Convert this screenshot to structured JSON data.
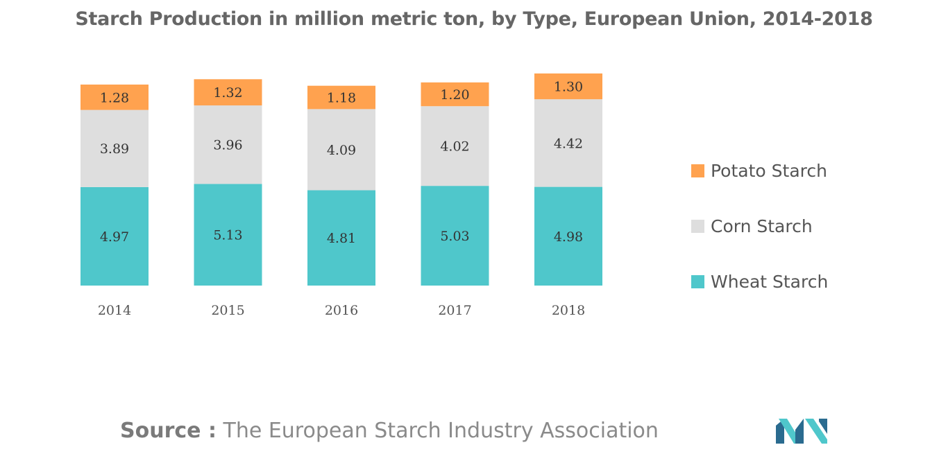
{
  "chart_data": {
    "type": "bar",
    "stacked": true,
    "title": "Starch Production in million metric ton, by Type, European Union, 2014-2018",
    "categories": [
      "2014",
      "2015",
      "2016",
      "2017",
      "2018"
    ],
    "series": [
      {
        "name": "Wheat Starch",
        "color": "#4fc7cb",
        "values": [
          4.97,
          5.13,
          4.81,
          5.03,
          4.98
        ],
        "labels": [
          "4.97",
          "5.13",
          "4.81",
          "5.03",
          "4.98"
        ]
      },
      {
        "name": "Corn Starch",
        "color": "#dedede",
        "values": [
          3.89,
          3.96,
          4.09,
          4.02,
          4.42
        ],
        "labels": [
          "3.89",
          "3.96",
          "4.09",
          "4.02",
          "4.42"
        ]
      },
      {
        "name": "Potato Starch",
        "color": "#ffa24f",
        "values": [
          1.28,
          1.32,
          1.18,
          1.2,
          1.3
        ],
        "labels": [
          "1.28",
          "1.32",
          "1.18",
          "1.20",
          "1.30"
        ]
      }
    ],
    "legend": [
      "Potato Starch",
      "Corn Starch",
      "Wheat Starch"
    ],
    "legend_position": "right",
    "xlabel": "",
    "ylabel": "",
    "grid": false,
    "y_axis_visible": false
  },
  "source": {
    "label": "Source :",
    "text": "The European Starch Industry Association"
  },
  "logo": {
    "icon": "mordor-intelligence-logo-icon",
    "colors": [
      "#2a6b8f",
      "#4fc7cb"
    ]
  }
}
